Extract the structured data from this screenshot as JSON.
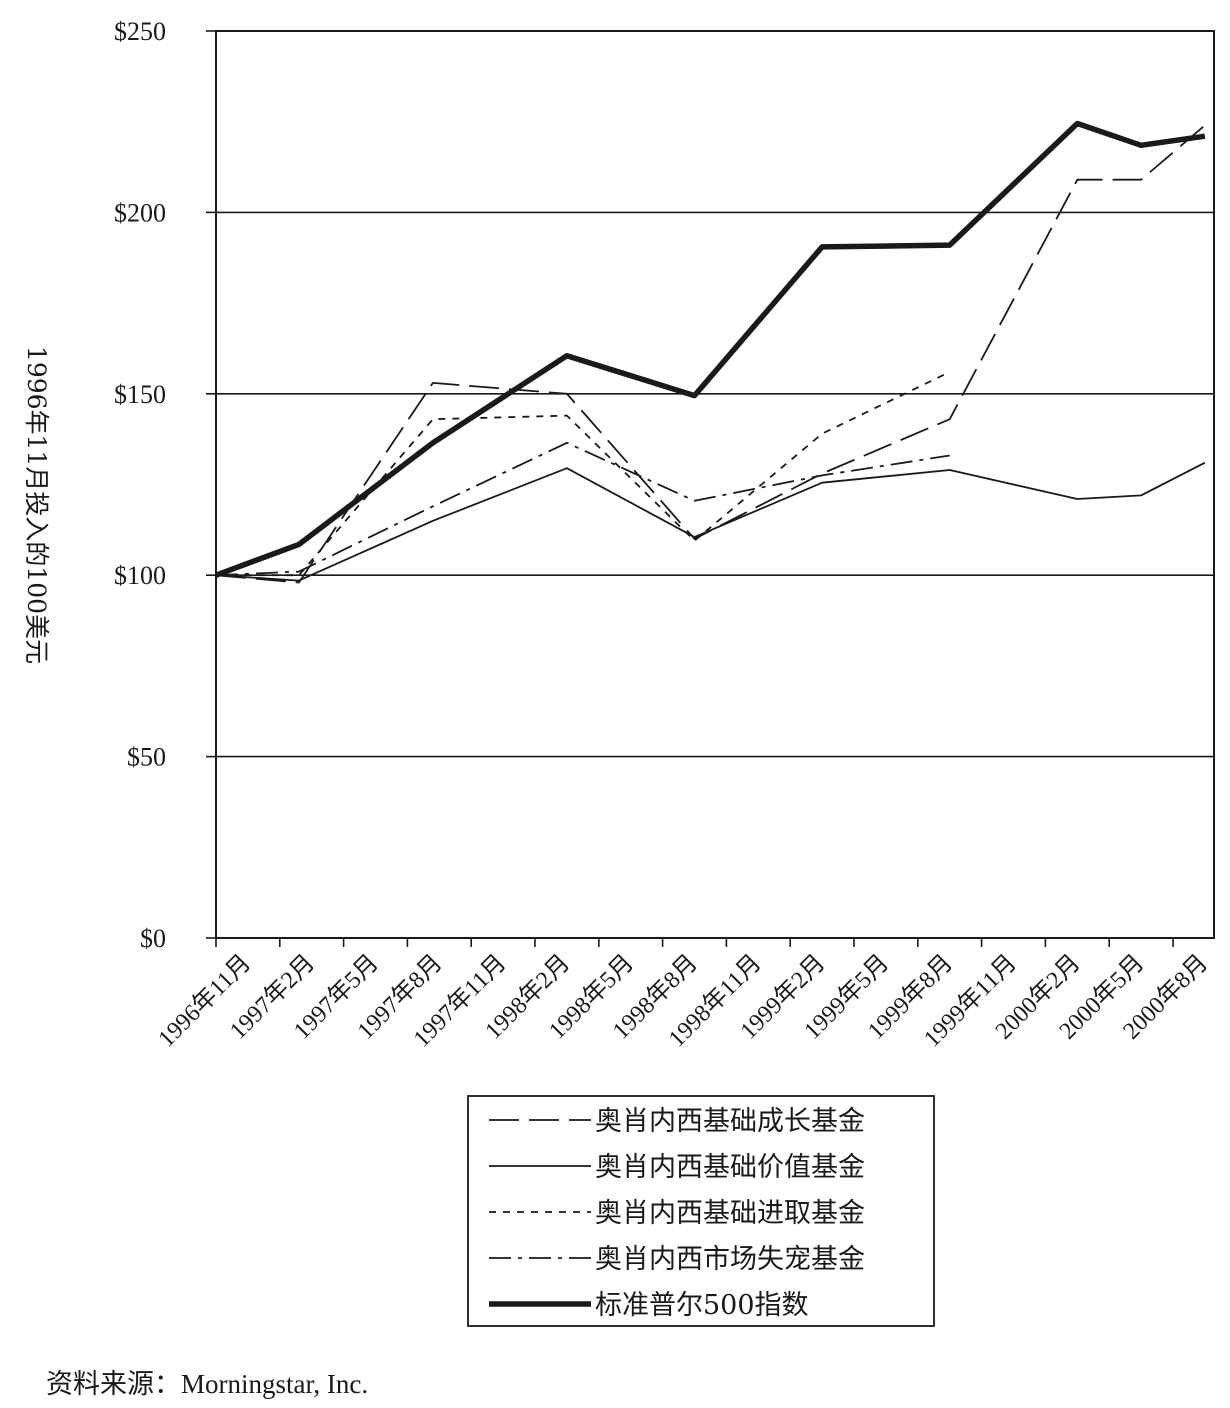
{
  "chart_data": {
    "type": "line",
    "title": "",
    "xlabel": "",
    "ylabel": "1996年11月投入的100美元",
    "ylim": [
      0,
      250
    ],
    "yticks": [
      0,
      50,
      100,
      150,
      200,
      250
    ],
    "ytick_labels": [
      "$0",
      "$50",
      "$100",
      "$150",
      "$200",
      "$250"
    ],
    "grid": true,
    "legend_position": "bottom-center",
    "categories": [
      "1996年11月",
      "1997年2月",
      "1997年5月",
      "1997年8月",
      "1997年11月",
      "1998年2月",
      "1998年5月",
      "1998年8月",
      "1998年11月",
      "1999年2月",
      "1999年5月",
      "1999年8月",
      "1999年11月",
      "2000年2月",
      "2000年5月",
      "2000年8月"
    ],
    "series": [
      {
        "name": "奥肖内西基础成长基金",
        "style": "dashed",
        "x": [
          0,
          1.3,
          3.4,
          5.5,
          7.5,
          9.5,
          11.5,
          13.5,
          14.5,
          15.5
        ],
        "values": [
          100,
          98,
          153,
          150,
          110,
          128,
          143,
          209,
          209,
          224
        ]
      },
      {
        "name": "奥肖内西基础价值基金",
        "style": "solid",
        "x": [
          0,
          1.3,
          3.4,
          5.5,
          7.5,
          9.5,
          11.5,
          13.5,
          14.5,
          15.5
        ],
        "values": [
          100,
          98.5,
          115,
          129.5,
          110.5,
          125.5,
          129,
          121,
          122,
          131
        ]
      },
      {
        "name": "奥肖内西基础进取基金",
        "style": "dotted",
        "x": [
          0,
          1.3,
          3.4,
          5.5,
          7.5,
          9.5,
          11.5
        ],
        "values": [
          100,
          100,
          143,
          144,
          109.5,
          139,
          156
        ]
      },
      {
        "name": "奥肖内西市场失宠基金",
        "style": "dashdot",
        "x": [
          0,
          1.3,
          3.4,
          5.5,
          7.5,
          9.5,
          11.5
        ],
        "values": [
          100,
          101,
          119,
          136.5,
          120.5,
          127.5,
          133
        ]
      },
      {
        "name": "标准普尔500指数",
        "style": "thick",
        "x": [
          0,
          1.3,
          3.4,
          5.5,
          7.5,
          9.5,
          11.5,
          13.5,
          14.5,
          15.5
        ],
        "values": [
          100,
          108.5,
          136.5,
          160.5,
          149.5,
          190.5,
          191,
          224.5,
          218.5,
          221
        ]
      }
    ]
  },
  "source_text": "资料来源：Morningstar, Inc."
}
